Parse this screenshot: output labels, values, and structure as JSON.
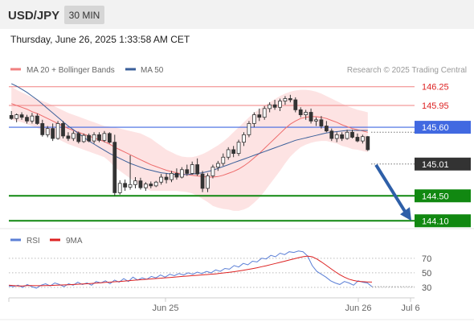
{
  "header": {
    "symbol": "USD/JPY",
    "timeframe": "30 MIN",
    "datetime": "Thursday, June 26, 2025 1:33:58 AM CET"
  },
  "legend": {
    "ma20": "MA 20 + Bollinger Bands",
    "ma50": "MA 50",
    "credit": "Research © 2025 Trading Central",
    "rsi": "RSI",
    "rsi_ma": "9MA"
  },
  "colors": {
    "up_candle": "#ffffff",
    "down_candle": "#333333",
    "ma20": "#ee6b6b",
    "ma50": "#3a5f9a",
    "bollinger_fill": "#fde3e3",
    "resistance": "#f08080",
    "pivot": "#4169e1",
    "support": "#118811",
    "arrow": "#2e5fa8",
    "rsi": "#5b7fd6",
    "rsi_ma": "#dd2222"
  },
  "chart_data": [
    {
      "type": "candlestick",
      "ylim": [
        144.0,
        146.35
      ],
      "candles": [
        [
          145.79,
          145.86,
          145.72,
          145.74
        ],
        [
          145.74,
          145.82,
          145.68,
          145.8
        ],
        [
          145.8,
          145.84,
          145.72,
          145.76
        ],
        [
          145.76,
          145.8,
          145.66,
          145.7
        ],
        [
          145.7,
          145.83,
          145.66,
          145.78
        ],
        [
          145.78,
          145.82,
          145.64,
          145.66
        ],
        [
          145.66,
          145.72,
          145.45,
          145.48
        ],
        [
          145.48,
          145.62,
          145.44,
          145.58
        ],
        [
          145.58,
          145.66,
          145.38,
          145.42
        ],
        [
          145.42,
          145.7,
          145.4,
          145.66
        ],
        [
          145.66,
          145.7,
          145.42,
          145.46
        ],
        [
          145.46,
          145.52,
          145.38,
          145.42
        ],
        [
          145.42,
          145.54,
          145.38,
          145.5
        ],
        [
          145.5,
          145.53,
          145.34,
          145.37
        ],
        [
          145.37,
          145.5,
          145.35,
          145.47
        ],
        [
          145.47,
          145.5,
          145.36,
          145.38
        ],
        [
          145.38,
          145.52,
          145.34,
          145.48
        ],
        [
          145.48,
          145.52,
          145.36,
          145.39
        ],
        [
          145.39,
          145.54,
          145.36,
          145.5
        ],
        [
          145.5,
          145.52,
          145.34,
          145.36
        ],
        [
          145.36,
          145.48,
          144.5,
          144.55
        ],
        [
          144.55,
          144.75,
          144.52,
          144.7
        ],
        [
          144.7,
          144.76,
          144.58,
          144.64
        ],
        [
          144.64,
          145.15,
          144.6,
          144.68
        ],
        [
          144.68,
          144.8,
          144.62,
          144.74
        ],
        [
          144.74,
          144.79,
          144.6,
          144.63
        ],
        [
          144.63,
          144.72,
          144.58,
          144.69
        ],
        [
          144.69,
          144.73,
          144.62,
          144.66
        ],
        [
          144.66,
          144.74,
          144.64,
          144.72
        ],
        [
          144.72,
          144.85,
          144.68,
          144.8
        ],
        [
          144.8,
          144.86,
          144.7,
          144.76
        ],
        [
          144.76,
          144.9,
          144.72,
          144.86
        ],
        [
          144.86,
          144.94,
          144.76,
          144.8
        ],
        [
          144.8,
          144.96,
          144.78,
          144.92
        ],
        [
          144.92,
          145.0,
          144.82,
          144.86
        ],
        [
          144.86,
          145.05,
          144.84,
          145.0
        ],
        [
          145.0,
          145.1,
          144.82,
          144.85
        ],
        [
          144.85,
          144.9,
          144.56,
          144.62
        ],
        [
          144.62,
          144.86,
          144.56,
          144.82
        ],
        [
          144.82,
          145.0,
          144.78,
          144.96
        ],
        [
          144.96,
          145.06,
          144.9,
          145.02
        ],
        [
          145.02,
          145.18,
          144.98,
          145.12
        ],
        [
          145.12,
          145.28,
          145.08,
          145.24
        ],
        [
          145.24,
          145.3,
          145.12,
          145.18
        ],
        [
          145.18,
          145.4,
          145.14,
          145.36
        ],
        [
          145.36,
          145.52,
          145.3,
          145.48
        ],
        [
          145.48,
          145.7,
          145.44,
          145.66
        ],
        [
          145.66,
          145.84,
          145.6,
          145.8
        ],
        [
          145.8,
          145.9,
          145.7,
          145.76
        ],
        [
          145.76,
          145.94,
          145.72,
          145.9
        ],
        [
          145.9,
          146.0,
          145.84,
          145.96
        ],
        [
          145.96,
          146.04,
          145.88,
          145.92
        ],
        [
          145.92,
          146.06,
          145.86,
          146.02
        ],
        [
          146.02,
          146.1,
          145.96,
          146.06
        ],
        [
          146.06,
          146.12,
          146.0,
          146.04
        ],
        [
          146.04,
          146.08,
          145.84,
          145.88
        ],
        [
          145.88,
          145.92,
          145.76,
          145.8
        ],
        [
          145.8,
          145.88,
          145.72,
          145.84
        ],
        [
          145.84,
          145.9,
          145.66,
          145.7
        ],
        [
          145.7,
          145.76,
          145.62,
          145.72
        ],
        [
          145.72,
          145.78,
          145.58,
          145.62
        ],
        [
          145.62,
          145.7,
          145.52,
          145.54
        ],
        [
          145.54,
          145.58,
          145.38,
          145.42
        ],
        [
          145.42,
          145.52,
          145.36,
          145.48
        ],
        [
          145.48,
          145.52,
          145.38,
          145.42
        ],
        [
          145.42,
          145.56,
          145.4,
          145.52
        ],
        [
          145.52,
          145.56,
          145.42,
          145.44
        ],
        [
          145.44,
          145.5,
          145.36,
          145.38
        ],
        [
          145.38,
          145.48,
          145.34,
          145.45
        ],
        [
          145.45,
          145.46,
          145.22,
          145.24
        ]
      ],
      "ma20": [
        145.98,
        145.95,
        145.92,
        145.89,
        145.85,
        145.82,
        145.78,
        145.74,
        145.7,
        145.66,
        145.62,
        145.58,
        145.55,
        145.52,
        145.49,
        145.46,
        145.43,
        145.4,
        145.37,
        145.33,
        145.28,
        145.24,
        145.2,
        145.16,
        145.12,
        145.08,
        145.04,
        145.0,
        144.97,
        144.94,
        144.91,
        144.89,
        144.87,
        144.85,
        144.84,
        144.83,
        144.82,
        144.81,
        144.8,
        144.8,
        144.81,
        144.83,
        144.86,
        144.89,
        144.93,
        144.98,
        145.04,
        145.11,
        145.18,
        145.26,
        145.34,
        145.42,
        145.5,
        145.58,
        145.65,
        145.7,
        145.74,
        145.76,
        145.77,
        145.77,
        145.76,
        145.74,
        145.71,
        145.68,
        145.64,
        145.61,
        145.58,
        145.56,
        145.54,
        145.52
      ],
      "ma50": [
        146.3,
        146.26,
        146.21,
        146.16,
        146.1,
        146.04,
        145.97,
        145.9,
        145.83,
        145.76,
        145.69,
        145.62,
        145.56,
        145.5,
        145.44,
        145.38,
        145.33,
        145.28,
        145.23,
        145.18,
        145.14,
        145.1,
        145.06,
        145.02,
        144.99,
        144.96,
        144.93,
        144.91,
        144.89,
        144.87,
        144.86,
        144.85,
        144.84,
        144.84,
        144.84,
        144.85,
        144.86,
        144.87,
        144.89,
        144.91,
        144.94,
        144.97,
        145.0,
        145.03,
        145.06,
        145.09,
        145.12,
        145.15,
        145.18,
        145.21,
        145.24,
        145.27,
        145.3,
        145.33,
        145.36,
        145.39,
        145.41,
        145.43,
        145.45,
        145.47,
        145.49,
        145.51,
        145.52,
        145.53,
        145.54,
        145.55,
        145.55,
        145.55,
        145.55,
        145.55
      ],
      "bb_upper": [
        146.25,
        146.2,
        146.16,
        146.12,
        146.08,
        146.05,
        146.02,
        145.99,
        145.95,
        145.91,
        145.87,
        145.83,
        145.8,
        145.77,
        145.74,
        145.71,
        145.68,
        145.65,
        145.62,
        145.61,
        145.6,
        145.58,
        145.56,
        145.54,
        145.52,
        145.5,
        145.46,
        145.42,
        145.36,
        145.3,
        145.24,
        145.2,
        145.16,
        145.13,
        145.12,
        145.12,
        145.14,
        145.17,
        145.21,
        145.26,
        145.31,
        145.37,
        145.44,
        145.52,
        145.6,
        145.68,
        145.76,
        145.83,
        145.89,
        145.95,
        146.0,
        146.05,
        146.1,
        146.14,
        146.17,
        146.19,
        146.2,
        146.2,
        146.19,
        146.17,
        146.14,
        146.1,
        146.06,
        146.02,
        145.98,
        145.94,
        145.91,
        145.88,
        145.86,
        145.84
      ],
      "bb_lower": [
        145.72,
        145.7,
        145.68,
        145.65,
        145.62,
        145.59,
        145.54,
        145.49,
        145.45,
        145.41,
        145.37,
        145.33,
        145.3,
        145.27,
        145.24,
        145.21,
        145.18,
        145.15,
        145.12,
        145.05,
        144.96,
        144.9,
        144.84,
        144.78,
        144.72,
        144.66,
        144.62,
        144.58,
        144.58,
        144.58,
        144.58,
        144.58,
        144.58,
        144.57,
        144.56,
        144.54,
        144.5,
        144.45,
        144.4,
        144.34,
        144.31,
        144.29,
        144.28,
        144.26,
        144.26,
        144.28,
        144.32,
        144.39,
        144.47,
        144.57,
        144.68,
        144.79,
        144.9,
        145.02,
        145.13,
        145.21,
        145.28,
        145.32,
        145.35,
        145.37,
        145.38,
        145.38,
        145.36,
        145.34,
        145.3,
        145.28,
        145.25,
        145.24,
        145.22,
        145.2
      ],
      "levels": [
        {
          "value": 146.25,
          "label": "146.25",
          "kind": "resistance"
        },
        {
          "value": 145.95,
          "label": "145.95",
          "kind": "resistance"
        },
        {
          "value": 145.6,
          "label": "145.60",
          "kind": "pivot"
        },
        {
          "value": 145.01,
          "label": "145.01",
          "kind": "last"
        },
        {
          "value": 144.5,
          "label": "144.50",
          "kind": "support"
        },
        {
          "value": 144.1,
          "label": "144.10",
          "kind": "support"
        }
      ],
      "x_ticks": [
        "Jun 25",
        "Jun 26",
        "Jul 6"
      ]
    },
    {
      "type": "line",
      "ylim": [
        20,
        82
      ],
      "y_ticks": [
        70,
        50,
        30
      ],
      "series": [
        {
          "name": "RSI",
          "values": [
            32,
            31,
            33,
            30,
            34,
            31,
            29,
            33,
            35,
            32,
            36,
            34,
            31,
            35,
            33,
            37,
            34,
            36,
            33,
            38,
            36,
            39,
            35,
            40,
            37,
            42,
            38,
            44,
            40,
            43,
            41,
            45,
            43,
            47,
            44,
            48,
            46,
            49,
            47,
            50,
            48,
            51,
            49,
            52,
            50,
            54,
            52,
            56,
            55,
            60,
            58,
            63,
            61,
            66,
            65,
            70,
            69,
            74,
            72,
            77,
            75,
            79,
            78,
            80,
            79,
            73,
            60,
            52,
            48,
            44,
            39,
            36,
            34,
            38,
            36,
            33,
            39,
            37,
            36,
            31
          ]
        },
        {
          "name": "9MA",
          "values": [
            33,
            32.5,
            32,
            32,
            32.5,
            32.5,
            32.3,
            32.3,
            32.5,
            32.6,
            32.8,
            33.2,
            33.4,
            33.6,
            33.9,
            34.3,
            34.6,
            35,
            35.4,
            35.9,
            36.3,
            36.8,
            37.2,
            37.7,
            38.1,
            38.6,
            39.1,
            39.6,
            40.1,
            40.6,
            41.1,
            41.6,
            42.1,
            42.6,
            43.1,
            43.6,
            44.1,
            44.6,
            45.1,
            45.6,
            46.1,
            46.6,
            47.1,
            47.6,
            48.1,
            48.6,
            49.3,
            50,
            50.8,
            51.6,
            52.5,
            53.5,
            54.6,
            55.8,
            57,
            58.4,
            59.8,
            61.3,
            62.8,
            64.4,
            66,
            67.6,
            69.2,
            70.8,
            72.2,
            73,
            72,
            69,
            65,
            60.5,
            56,
            51.5,
            47.5,
            44,
            41.3,
            39.5,
            38.3,
            37.8,
            37.5,
            37.3
          ]
        }
      ]
    }
  ]
}
